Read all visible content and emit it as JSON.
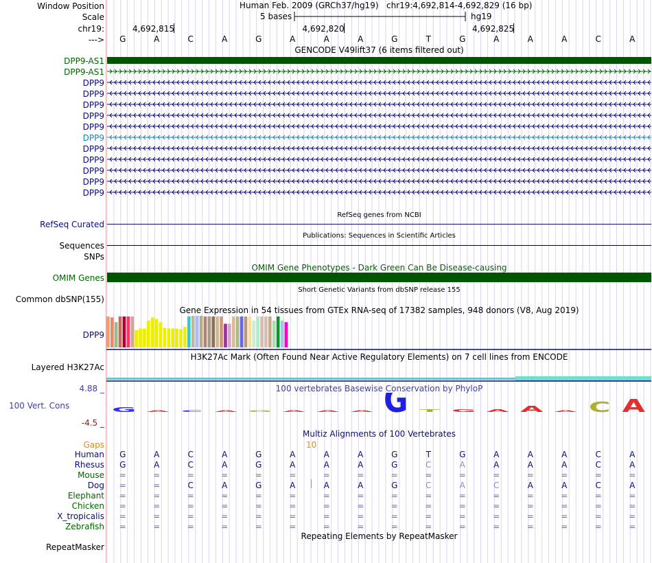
{
  "header": {
    "window_position_label": "Window Position",
    "assembly": "Human Feb. 2009 (GRCh37/hg19)",
    "position": "chr19:4,692,814-4,692,829 (16 bp)",
    "scale_label": "Scale",
    "scale_text": "5 bases",
    "scale_db": "hg19",
    "chrom_label": "chr19:",
    "strand_label": "--->",
    "ticks": [
      "4,692,815",
      "4,692,820",
      "4,692,825"
    ]
  },
  "bases": [
    "G",
    "A",
    "C",
    "A",
    "G",
    "A",
    "A",
    "A",
    "G",
    "T",
    "G",
    "A",
    "A",
    "A",
    "C",
    "A"
  ],
  "gencode": {
    "title": "GENCODE V49lift37 (6 items filtered out)",
    "tracks": [
      {
        "name": "DPP9-AS1",
        "color": "#006400",
        "style": "solid"
      },
      {
        "name": "DPP9-AS1",
        "color": "#006400",
        "style": "plus"
      },
      {
        "name": "DPP9",
        "color": "#0c0c78",
        "style": "minus"
      },
      {
        "name": "DPP9",
        "color": "#0c0c78",
        "style": "minus"
      },
      {
        "name": "DPP9",
        "color": "#0c0c78",
        "style": "minus"
      },
      {
        "name": "DPP9",
        "color": "#0c0c78",
        "style": "minus"
      },
      {
        "name": "DPP9",
        "color": "#0c0c78",
        "style": "minus"
      },
      {
        "name": "DPP9",
        "color": "#1e82b4",
        "style": "minus"
      },
      {
        "name": "DPP9",
        "color": "#0c0c78",
        "style": "minus"
      },
      {
        "name": "DPP9",
        "color": "#0c0c78",
        "style": "minus"
      },
      {
        "name": "DPP9",
        "color": "#0c0c78",
        "style": "minus"
      },
      {
        "name": "DPP9",
        "color": "#0c0c78",
        "style": "minus"
      },
      {
        "name": "DPP9",
        "color": "#0c0c78",
        "style": "minus"
      }
    ]
  },
  "refseq": {
    "title": "RefSeq genes from NCBI",
    "label": "RefSeq Curated"
  },
  "publications": {
    "title": "Publications: Sequences in Scientific Articles",
    "label": "Sequences"
  },
  "snps": {
    "label": "SNPs"
  },
  "omim": {
    "title": "OMIM Gene Phenotypes - Dark Green Can Be Disease-causing",
    "label": "OMIM Genes"
  },
  "dbsnp": {
    "title": "Short Genetic Variants from dbSNP release 155",
    "label": "Common dbSNP(155)"
  },
  "gtex": {
    "title": "Gene Expression in 54 tissues from GTEx RNA-seq of 17382 samples, 948 donors (V8, Aug 2019)",
    "label": "DPP9",
    "bars": [
      {
        "v": 0.98,
        "c": "#ff9966"
      },
      {
        "v": 0.95,
        "c": "#ee8866"
      },
      {
        "v": 0.8,
        "c": "#99bb88"
      },
      {
        "v": 0.98,
        "c": "#cc6655"
      },
      {
        "v": 0.98,
        "c": "#aa0033"
      },
      {
        "v": 0.98,
        "c": "#ff3366"
      },
      {
        "v": 0.98,
        "c": "#ccaa99"
      },
      {
        "v": 0.55,
        "c": "#eeee00"
      },
      {
        "v": 0.6,
        "c": "#eeee00"
      },
      {
        "v": 0.6,
        "c": "#eeee00"
      },
      {
        "v": 0.85,
        "c": "#eeee00"
      },
      {
        "v": 0.95,
        "c": "#eeee00"
      },
      {
        "v": 0.9,
        "c": "#eeee00"
      },
      {
        "v": 0.8,
        "c": "#eeee00"
      },
      {
        "v": 0.62,
        "c": "#eeee00"
      },
      {
        "v": 0.6,
        "c": "#eeee00"
      },
      {
        "v": 0.6,
        "c": "#eeee00"
      },
      {
        "v": 0.6,
        "c": "#eeee00"
      },
      {
        "v": 0.58,
        "c": "#eeee00"
      },
      {
        "v": 0.65,
        "c": "#eeee00"
      },
      {
        "v": 0.98,
        "c": "#33cccc"
      },
      {
        "v": 1.0,
        "c": "#bbbb99"
      },
      {
        "v": 1.0,
        "c": "#aabbff"
      },
      {
        "v": 1.0,
        "c": "#bbaa88"
      },
      {
        "v": 0.98,
        "c": "#aa8877"
      },
      {
        "v": 0.98,
        "c": "#aa9988"
      },
      {
        "v": 0.98,
        "c": "#8b7355"
      },
      {
        "v": 0.98,
        "c": "#ccbb99"
      },
      {
        "v": 0.98,
        "c": "#cc9977"
      },
      {
        "v": 0.75,
        "c": "#993399"
      },
      {
        "v": 0.75,
        "c": "#ccaacc"
      },
      {
        "v": 0.98,
        "c": "#ddbb99"
      },
      {
        "v": 0.98,
        "c": "#aabb88"
      },
      {
        "v": 0.98,
        "c": "#6666ee"
      },
      {
        "v": 0.98,
        "c": "#bb9977"
      },
      {
        "v": 0.98,
        "c": "#ffdd99"
      },
      {
        "v": 0.85,
        "c": "#cceecc"
      },
      {
        "v": 0.98,
        "c": "#aaeecc"
      },
      {
        "v": 0.98,
        "c": "#ddbbaa"
      },
      {
        "v": 0.98,
        "c": "#ddbbaa"
      },
      {
        "v": 0.98,
        "c": "#ccaa88"
      },
      {
        "v": 0.85,
        "c": "#aaddaa"
      },
      {
        "v": 0.98,
        "c": "#009933"
      },
      {
        "v": 0.85,
        "c": "#99ccdd"
      },
      {
        "v": 0.8,
        "c": "#ff00cc"
      }
    ]
  },
  "h3k27ac": {
    "title": "H3K27Ac Mark (Often Found Near Active Regulatory Elements) on 7 cell lines from ENCODE",
    "label": "Layered H3K27Ac"
  },
  "conservation": {
    "title": "100 vertebrates Basewise Conservation by PhyloP",
    "label": "100 Vert. Cons",
    "max": "4.88 _",
    "min": "-4.5 _",
    "logo_bases": [
      {
        "b": "G",
        "h": 0.2,
        "c": "#3030ee"
      },
      {
        "b": "A",
        "h": 0.05,
        "c": "#e03030"
      },
      {
        "b": "C",
        "h": 0.02,
        "c": "#3030ee"
      },
      {
        "b": "A",
        "h": 0.02,
        "c": "#e03030"
      },
      {
        "b": "G",
        "h": 0.05,
        "c": "#b0b030"
      },
      {
        "b": "A",
        "h": 0.02,
        "c": "#e03030"
      },
      {
        "b": "A",
        "h": 0.02,
        "c": "#e03030"
      },
      {
        "b": "A",
        "h": 0.02,
        "c": "#e03030"
      },
      {
        "b": "G",
        "h": 1.0,
        "c": "#2020dd"
      },
      {
        "b": "T",
        "h": 0.1,
        "c": "#b0b030"
      },
      {
        "b": "G",
        "h": 0.1,
        "c": "#e03030"
      },
      {
        "b": "A",
        "h": 0.1,
        "c": "#e03030"
      },
      {
        "b": "A",
        "h": 0.25,
        "c": "#e03030"
      },
      {
        "b": "A",
        "h": 0.02,
        "c": "#e03030"
      },
      {
        "b": "C",
        "h": 0.4,
        "c": "#b0b030"
      },
      {
        "b": "A",
        "h": 0.5,
        "c": "#e03030"
      }
    ]
  },
  "multiz": {
    "title": "Multiz Alignments of 100 Vertebrates",
    "gaps_label": "Gaps",
    "gap_count": "10",
    "species": [
      {
        "name": "Human",
        "color": "#0c0c78",
        "seq": [
          "G",
          "A",
          "C",
          "A",
          "G",
          "A",
          "A",
          "A",
          "G",
          "T",
          "G",
          "A",
          "A",
          "A",
          "C",
          "A"
        ]
      },
      {
        "name": "Rhesus",
        "color": "#0c0c78",
        "seq": [
          "G",
          "A",
          "C",
          "A",
          "G",
          "A",
          "A",
          "A",
          "G",
          "C",
          "A",
          "A",
          "A",
          "A",
          "C",
          "A"
        ]
      },
      {
        "name": "Mouse",
        "color": "#006400",
        "seq": [
          "=",
          "=",
          "=",
          "=",
          "=",
          "=",
          "=",
          "=",
          "=",
          "=",
          "=",
          "=",
          "=",
          "=",
          "=",
          "="
        ]
      },
      {
        "name": "Dog",
        "color": "#0c0c78",
        "seq": [
          "=",
          "=",
          "C",
          "A",
          "G",
          "A",
          "A",
          "A",
          "G",
          "C",
          "A",
          "C",
          "A",
          "A",
          "C",
          "A"
        ]
      },
      {
        "name": "Elephant",
        "color": "#006400",
        "seq": [
          "=",
          "=",
          "=",
          "=",
          "=",
          "=",
          "=",
          "=",
          "=",
          "=",
          "=",
          "=",
          "=",
          "=",
          "=",
          "="
        ]
      },
      {
        "name": "Chicken",
        "color": "#006400",
        "seq": [
          "=",
          "=",
          "=",
          "=",
          "=",
          "=",
          "=",
          "=",
          "=",
          "=",
          "=",
          "=",
          "=",
          "=",
          "=",
          "="
        ]
      },
      {
        "name": "X_tropicalis",
        "color": "#0c0c78",
        "seq": [
          "=",
          "=",
          "=",
          "=",
          "=",
          "=",
          "=",
          "=",
          "=",
          "=",
          "=",
          "=",
          "=",
          "=",
          "=",
          "="
        ]
      },
      {
        "name": "Zebrafish",
        "color": "#006400",
        "seq": [
          "=",
          "=",
          "=",
          "=",
          "=",
          "=",
          "=",
          "=",
          "=",
          "=",
          "=",
          "=",
          "=",
          "=",
          "=",
          "="
        ]
      }
    ]
  },
  "repeatmasker": {
    "title": "Repeating Elements by RepeatMasker",
    "label": "RepeatMasker"
  }
}
